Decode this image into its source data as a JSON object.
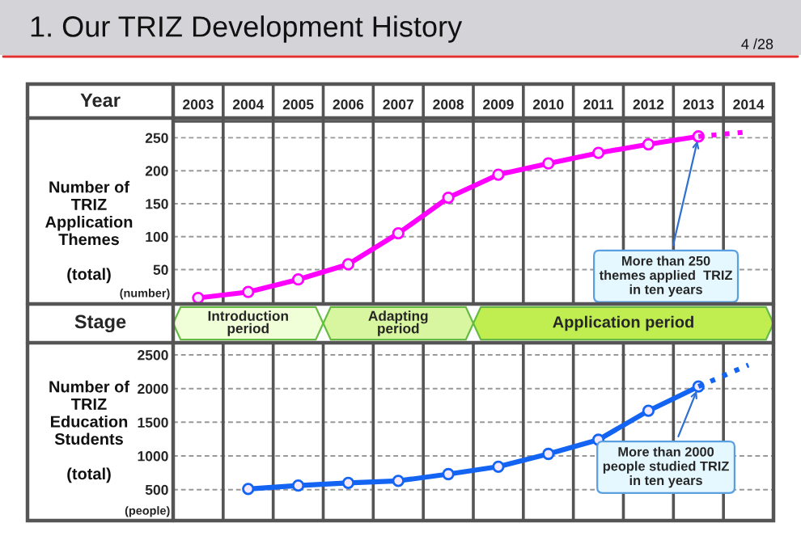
{
  "chart_data": [
    {
      "type": "line",
      "title": "1. Our TRIZ Development History",
      "subtitle": "4 /28",
      "xlabel": "Year",
      "ylabel": "Number of\nTRIZ\nApplication\nThemes\n\n(total)",
      "categories": [
        "2003",
        "2004",
        "2005",
        "2006",
        "2007",
        "2008",
        "2009",
        "2010",
        "2011",
        "2012",
        "2013",
        "2014"
      ],
      "series": [
        {
          "color": "#ff00ff",
          "marker": "circle",
          "line_style": "solid",
          "values": [
            7,
            16,
            35,
            58,
            105,
            159,
            194,
            211,
            227,
            240,
            252,
            null
          ]
        },
        {
          "color": "#ff00ff",
          "line_style": "dotted",
          "values": [
            null,
            null,
            null,
            null,
            null,
            null,
            null,
            null,
            null,
            null,
            252,
            259
          ]
        }
      ],
      "ylim": [
        -61,
        275
      ],
      "yticks": [
        50,
        100,
        150,
        200,
        250
      ],
      "grid": "y",
      "annotations": [
        "(number)",
        {
          "text": "More than 250\nthemes applied  TRIZ\nin ten years",
          "x": "2013",
          "y": 252
        }
      ],
      "bands": [
        {
          "axis": "x",
          "from": "2003",
          "to": "2005",
          "label": "Introduction\nperiod",
          "color": "#f0ffd8"
        },
        {
          "axis": "x",
          "from": "2006",
          "to": "2008",
          "label": "Adapting\nperiod",
          "color": "#d8f5a0"
        },
        {
          "axis": "x",
          "from": "2009",
          "to": "2014",
          "label": "Application period",
          "color": "#c0ee50"
        }
      ]
    },
    {
      "type": "other",
      "title": "Stage"
    },
    {
      "type": "line",
      "ylabel": "Number of\nTRIZ\nEducation\nStudents\n\n(total)",
      "categories": [
        "2003",
        "2004",
        "2005",
        "2006",
        "2007",
        "2008",
        "2009",
        "2010",
        "2011",
        "2012",
        "2013",
        "2014"
      ],
      "series": [
        {
          "color": "#1464f4",
          "marker": "circle",
          "line_style": "solid",
          "values": [
            null,
            510,
            560,
            600,
            630,
            730,
            840,
            1030,
            1240,
            1670,
            2030,
            null
          ]
        },
        {
          "color": "#1464f4",
          "line_style": "dotted",
          "values": [
            null,
            null,
            null,
            null,
            null,
            null,
            null,
            null,
            null,
            null,
            2030,
            2350
          ]
        }
      ],
      "ylim": [
        40,
        2680
      ],
      "yticks": [
        500,
        1000,
        1500,
        2000,
        2500
      ],
      "grid": "y",
      "tick_labels": "y",
      "annotations": [
        "(people)",
        {
          "text": "More than 2000\npeople studied TRIZ\nin ten years",
          "x": "2013",
          "y": 2030
        }
      ]
    }
  ]
}
